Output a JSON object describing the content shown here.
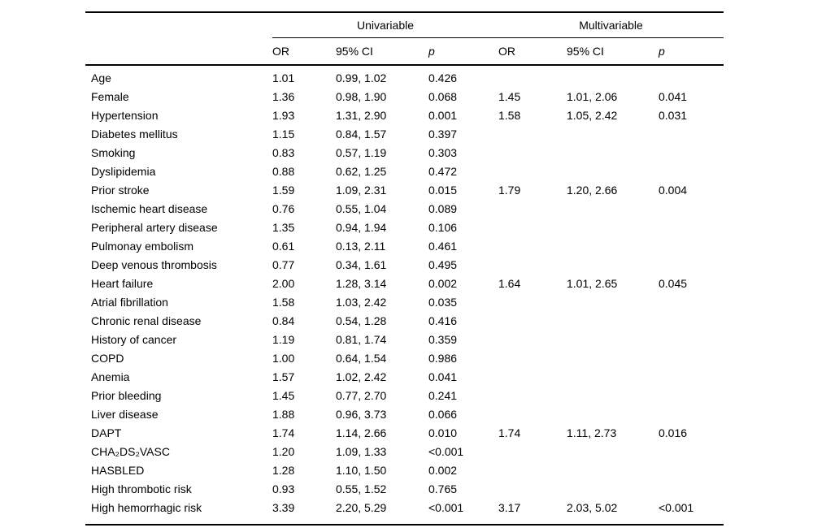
{
  "colors": {
    "background": "#ffffff",
    "text": "#000000",
    "rule": "#000000"
  },
  "table": {
    "groups": {
      "univariable": "Univariable",
      "multivariable": "Multivariable"
    },
    "column_headers": {
      "or": "OR",
      "ci": "95% CI",
      "p": "p"
    },
    "rows": [
      {
        "variable": "Age",
        "u_or": "1.01",
        "u_ci": "0.99, 1.02",
        "u_p": "0.426",
        "m_or": "",
        "m_ci": "",
        "m_p": ""
      },
      {
        "variable": "Female",
        "u_or": "1.36",
        "u_ci": "0.98, 1.90",
        "u_p": "0.068",
        "m_or": "1.45",
        "m_ci": "1.01, 2.06",
        "m_p": "0.041"
      },
      {
        "variable": "Hypertension",
        "u_or": "1.93",
        "u_ci": "1.31, 2.90",
        "u_p": "0.001",
        "m_or": "1.58",
        "m_ci": "1.05, 2.42",
        "m_p": "0.031"
      },
      {
        "variable": "Diabetes mellitus",
        "u_or": "1.15",
        "u_ci": "0.84, 1.57",
        "u_p": "0.397",
        "m_or": "",
        "m_ci": "",
        "m_p": ""
      },
      {
        "variable": "Smoking",
        "u_or": "0.83",
        "u_ci": "0.57, 1.19",
        "u_p": "0.303",
        "m_or": "",
        "m_ci": "",
        "m_p": ""
      },
      {
        "variable": "Dyslipidemia",
        "u_or": "0.88",
        "u_ci": "0.62, 1.25",
        "u_p": "0.472",
        "m_or": "",
        "m_ci": "",
        "m_p": ""
      },
      {
        "variable": "Prior stroke",
        "u_or": "1.59",
        "u_ci": "1.09, 2.31",
        "u_p": "0.015",
        "m_or": "1.79",
        "m_ci": "1.20, 2.66",
        "m_p": "0.004"
      },
      {
        "variable": "Ischemic heart disease",
        "u_or": "0.76",
        "u_ci": "0.55, 1.04",
        "u_p": "0.089",
        "m_or": "",
        "m_ci": "",
        "m_p": ""
      },
      {
        "variable": "Peripheral artery disease",
        "u_or": "1.35",
        "u_ci": "0.94, 1.94",
        "u_p": "0.106",
        "m_or": "",
        "m_ci": "",
        "m_p": ""
      },
      {
        "variable": "Pulmonay embolism",
        "u_or": "0.61",
        "u_ci": "0.13, 2.11",
        "u_p": "0.461",
        "m_or": "",
        "m_ci": "",
        "m_p": ""
      },
      {
        "variable": "Deep venous thrombosis",
        "u_or": "0.77",
        "u_ci": "0.34, 1.61",
        "u_p": "0.495",
        "m_or": "",
        "m_ci": "",
        "m_p": ""
      },
      {
        "variable": "Heart failure",
        "u_or": "2.00",
        "u_ci": "1.28, 3.14",
        "u_p": "0.002",
        "m_or": "1.64",
        "m_ci": "1.01, 2.65",
        "m_p": "0.045"
      },
      {
        "variable": "Atrial fibrillation",
        "u_or": "1.58",
        "u_ci": "1.03, 2.42",
        "u_p": "0.035",
        "m_or": "",
        "m_ci": "",
        "m_p": ""
      },
      {
        "variable": "Chronic renal disease",
        "u_or": "0.84",
        "u_ci": "0.54, 1.28",
        "u_p": "0.416",
        "m_or": "",
        "m_ci": "",
        "m_p": ""
      },
      {
        "variable": "History of cancer",
        "u_or": "1.19",
        "u_ci": "0.81, 1.74",
        "u_p": "0.359",
        "m_or": "",
        "m_ci": "",
        "m_p": ""
      },
      {
        "variable": "COPD",
        "u_or": "1.00",
        "u_ci": "0.64, 1.54",
        "u_p": "0.986",
        "m_or": "",
        "m_ci": "",
        "m_p": ""
      },
      {
        "variable": "Anemia",
        "u_or": "1.57",
        "u_ci": "1.02, 2.42",
        "u_p": "0.041",
        "m_or": "",
        "m_ci": "",
        "m_p": ""
      },
      {
        "variable": "Prior bleeding",
        "u_or": "1.45",
        "u_ci": "0.77, 2.70",
        "u_p": "0.241",
        "m_or": "",
        "m_ci": "",
        "m_p": ""
      },
      {
        "variable": "Liver disease",
        "u_or": "1.88",
        "u_ci": "0.96, 3.73",
        "u_p": "0.066",
        "m_or": "",
        "m_ci": "",
        "m_p": ""
      },
      {
        "variable": "DAPT",
        "u_or": "1.74",
        "u_ci": "1.14, 2.66",
        "u_p": "0.010",
        "m_or": "1.74",
        "m_ci": "1.11, 2.73",
        "m_p": "0.016"
      },
      {
        "variable": "CHA₂DS₂VASC",
        "u_or": "1.20",
        "u_ci": "1.09, 1.33",
        "u_p": "<0.001",
        "m_or": "",
        "m_ci": "",
        "m_p": ""
      },
      {
        "variable": "HASBLED",
        "u_or": "1.28",
        "u_ci": "1.10, 1.50",
        "u_p": "0.002",
        "m_or": "",
        "m_ci": "",
        "m_p": ""
      },
      {
        "variable": "High thrombotic risk",
        "u_or": "0.93",
        "u_ci": "0.55, 1.52",
        "u_p": "0.765",
        "m_or": "",
        "m_ci": "",
        "m_p": ""
      },
      {
        "variable": "High hemorrhagic risk",
        "u_or": "3.39",
        "u_ci": "2.20, 5.29",
        "u_p": "<0.001",
        "m_or": "3.17",
        "m_ci": "2.03, 5.02",
        "m_p": "<0.001"
      }
    ]
  }
}
